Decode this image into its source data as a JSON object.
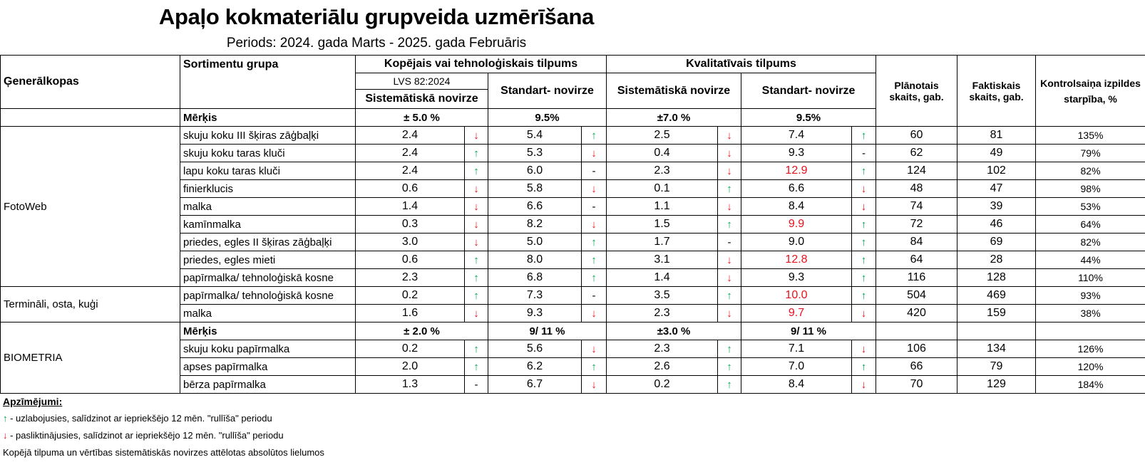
{
  "title": "Apaļo kokmateriālu grupveida uzmērīšana",
  "period": "Periods: 2024. gada Marts - 2025. gada Februāris",
  "headers": {
    "general": "Ģenerālkopas",
    "sortiment": "Sortimentu grupa",
    "kopejais": "Kopējais vai tehnoloģiskais tilpums",
    "lvs": "LVS 82:2024",
    "sist": "Sistemātiskā novirze",
    "std": "Standart- novirze",
    "kval": "Kvalitatīvais tilpums",
    "kval_sist": "Sistemātiskā novirze",
    "kval_std": "Standart- novirze",
    "plan": "Plānotais skaits, gab.",
    "fakt": "Faktiskais skaits, gab.",
    "kontrol": "Kontrolsaiņa izpildes starpība, %"
  },
  "merkis1": {
    "label": "Mērķis",
    "sist": "± 5.0 %",
    "std": "9.5%",
    "ksist": "±7.0 %",
    "kstd": "9.5%"
  },
  "merkis2": {
    "label": "Mērķis",
    "sist": "± 2.0 %",
    "std": "9/ 11 %",
    "ksist": "±3.0 %",
    "kstd": "9/ 11 %"
  },
  "groups": [
    "FotoWeb",
    "Termināli, osta, kuģi",
    "BIOMETRIA"
  ],
  "rows": [
    {
      "name": "skuju koku III šķiras zāģbaļķi",
      "s": "2.4",
      "sa": "↓",
      "sd": "5.4",
      "sda": "↑",
      "k": "2.5",
      "ka": "↓",
      "kd": "7.4",
      "kda": "↑",
      "p": "60",
      "f": "81",
      "c": "135%"
    },
    {
      "name": "skuju koku taras kluči",
      "s": "2.4",
      "sa": "↑",
      "sd": "5.3",
      "sda": "↓",
      "k": "0.4",
      "ka": "↓",
      "kd": "9.3",
      "kda": "-",
      "p": "62",
      "f": "49",
      "c": "79%"
    },
    {
      "name": "lapu koku taras kluči",
      "s": "2.4",
      "sa": "↑",
      "sd": "6.0",
      "sda": "-",
      "k": "2.3",
      "ka": "↓",
      "kd": "12.9",
      "kda": "↑",
      "p": "124",
      "f": "102",
      "c": "82%"
    },
    {
      "name": "finierklucis",
      "s": "0.6",
      "sa": "↓",
      "sd": "5.8",
      "sda": "↓",
      "k": "0.1",
      "ka": "↑",
      "kd": "6.6",
      "kda": "↓",
      "p": "48",
      "f": "47",
      "c": "98%"
    },
    {
      "name": "malka",
      "s": "1.4",
      "sa": "↓",
      "sd": "6.6",
      "sda": "-",
      "k": "1.1",
      "ka": "↓",
      "kd": "8.4",
      "kda": "↓",
      "p": "74",
      "f": "39",
      "c": "53%"
    },
    {
      "name": "kamīnmalka",
      "s": "0.3",
      "sa": "↓",
      "sd": "8.2",
      "sda": "↓",
      "k": "1.5",
      "ka": "↑",
      "kd": "9.9",
      "kda": "↑",
      "p": "72",
      "f": "46",
      "c": "64%"
    },
    {
      "name": "priedes, egles II šķiras zāģbaļķi",
      "s": "3.0",
      "sa": "↓",
      "sd": "5.0",
      "sda": "↑",
      "k": "1.7",
      "ka": "-",
      "kd": "9.0",
      "kda": "↑",
      "p": "84",
      "f": "69",
      "c": "82%"
    },
    {
      "name": "priedes, egles mieti",
      "s": "0.6",
      "sa": "↑",
      "sd": "8.0",
      "sda": "↑",
      "k": "3.1",
      "ka": "↓",
      "kd": "12.8",
      "kda": "↑",
      "p": "64",
      "f": "28",
      "c": "44%"
    },
    {
      "name": "papīrmalka/ tehnoloģiskā kosne",
      "s": "2.3",
      "sa": "↑",
      "sd": "6.8",
      "sda": "↑",
      "k": "1.4",
      "ka": "↓",
      "kd": "9.3",
      "kda": "↑",
      "p": "116",
      "f": "128",
      "c": "110%"
    },
    {
      "name": "papīrmalka/ tehnoloģiskā kosne",
      "s": "0.2",
      "sa": "↑",
      "sd": "7.3",
      "sda": "-",
      "k": "3.5",
      "ka": "↑",
      "kd": "10.0",
      "kda": "↑",
      "p": "504",
      "f": "469",
      "c": "93%"
    },
    {
      "name": "malka",
      "s": "1.6",
      "sa": "↓",
      "sd": "9.3",
      "sda": "↓",
      "k": "2.3",
      "ka": "↓",
      "kd": "9.7",
      "kda": "↓",
      "p": "420",
      "f": "159",
      "c": "38%"
    },
    {
      "name": "skuju koku papīrmalka",
      "s": "0.2",
      "sa": "↑",
      "sd": "5.6",
      "sda": "↓",
      "k": "2.3",
      "ka": "↑",
      "kd": "7.1",
      "kda": "↓",
      "p": "106",
      "f": "134",
      "c": "126%"
    },
    {
      "name": "apses papīrmalka",
      "s": "2.0",
      "sa": "↑",
      "sd": "6.2",
      "sda": "↑",
      "k": "2.6",
      "ka": "↑",
      "kd": "7.0",
      "kda": "↑",
      "p": "66",
      "f": "79",
      "c": "120%"
    },
    {
      "name": "bērza papīrmalka",
      "s": "1.3",
      "sa": "-",
      "sd": "6.7",
      "sda": "↓",
      "k": "0.2",
      "ka": "↑",
      "kd": "8.4",
      "kda": "↓",
      "p": "70",
      "f": "129",
      "c": "184%"
    }
  ],
  "red_values": [
    "12.9",
    "9.9",
    "12.8",
    "10.0",
    "9.7"
  ],
  "legend": {
    "title": "Apzīmējumi:",
    "up_arrow": "↑",
    "up_text": " - uzlabojusies, salīdzinot ar iepriekšējo 12 mēn. \"rullīša\" periodu",
    "down_arrow": "↓",
    "down_text": " - pasliktinājusies, salīdzinot ar iepriekšējo 12 mēn. \"rullīša\" periodu",
    "note": "Kopējā tilpuma un vērtības sistemātiskās novirzes attēlotas absolūtos lielumos"
  },
  "colors": {
    "up": "#00a651",
    "down": "#e8121b",
    "red_value": "#e8121b"
  }
}
